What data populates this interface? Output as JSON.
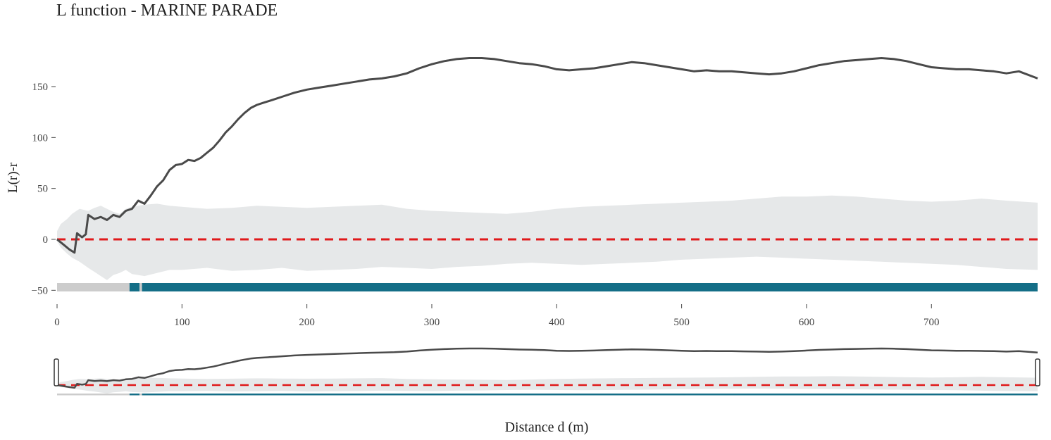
{
  "chart_data": {
    "type": "line",
    "title": "L function - MARINE PARADE",
    "xlabel": "Distance d (m)",
    "ylabel": "L(r)-r",
    "xlim": [
      0,
      785
    ],
    "ylim": [
      -55,
      190
    ],
    "x_ticks": [
      0,
      100,
      200,
      300,
      400,
      500,
      600,
      700
    ],
    "y_ticks": [
      -50,
      0,
      50,
      100,
      150
    ],
    "x_tick_labels": [
      "0",
      "100",
      "200",
      "300",
      "400",
      "500",
      "600",
      "700"
    ],
    "y_tick_labels": [
      "−50",
      "0",
      "50",
      "100",
      "150"
    ],
    "observed": {
      "color": "#4a4a4a",
      "x": [
        0,
        5,
        10,
        14,
        16,
        20,
        23,
        25,
        30,
        35,
        40,
        45,
        50,
        55,
        60,
        65,
        70,
        75,
        80,
        85,
        90,
        95,
        100,
        105,
        110,
        115,
        120,
        125,
        130,
        135,
        140,
        145,
        150,
        155,
        160,
        165,
        170,
        175,
        180,
        190,
        200,
        210,
        220,
        230,
        240,
        250,
        260,
        270,
        280,
        290,
        300,
        310,
        320,
        330,
        340,
        350,
        360,
        370,
        380,
        390,
        400,
        410,
        420,
        430,
        440,
        450,
        460,
        470,
        480,
        490,
        500,
        510,
        520,
        530,
        540,
        550,
        560,
        570,
        580,
        590,
        600,
        610,
        620,
        630,
        640,
        650,
        660,
        670,
        680,
        690,
        700,
        710,
        720,
        730,
        740,
        750,
        760,
        770,
        785
      ],
      "y": [
        0,
        -5,
        -10,
        -13,
        6,
        2,
        5,
        24,
        20,
        22,
        19,
        24,
        22,
        28,
        30,
        38,
        35,
        43,
        52,
        58,
        68,
        73,
        74,
        78,
        77,
        80,
        85,
        90,
        97,
        105,
        111,
        118,
        124,
        129,
        132,
        134,
        136,
        138,
        140,
        144,
        147,
        149,
        151,
        153,
        155,
        157,
        158,
        160,
        163,
        168,
        172,
        175,
        177,
        178,
        178,
        177,
        175,
        173,
        172,
        170,
        167,
        166,
        167,
        168,
        170,
        172,
        174,
        173,
        171,
        169,
        167,
        165,
        166,
        165,
        165,
        164,
        163,
        162,
        163,
        165,
        168,
        171,
        173,
        175,
        176,
        177,
        178,
        177,
        175,
        172,
        169,
        168,
        167,
        167,
        166,
        165,
        163,
        165,
        158
      ]
    },
    "theoretical": {
      "color": "#e0191a",
      "style": "dashed",
      "x": [
        0,
        785
      ],
      "y": [
        0,
        0
      ]
    },
    "envelope": {
      "color": "#e6e8e9",
      "x": [
        0,
        3,
        8,
        12,
        18,
        25,
        30,
        35,
        40,
        45,
        50,
        55,
        60,
        70,
        80,
        90,
        100,
        120,
        140,
        160,
        180,
        200,
        220,
        240,
        260,
        280,
        300,
        320,
        340,
        360,
        380,
        400,
        420,
        440,
        460,
        480,
        500,
        520,
        540,
        560,
        580,
        600,
        620,
        640,
        660,
        680,
        700,
        720,
        740,
        760,
        785
      ],
      "upper": [
        8,
        15,
        20,
        25,
        30,
        28,
        31,
        33,
        30,
        27,
        25,
        30,
        32,
        34,
        35,
        33,
        32,
        30,
        31,
        33,
        32,
        31,
        32,
        33,
        34,
        30,
        28,
        27,
        26,
        25,
        27,
        30,
        32,
        33,
        34,
        35,
        36,
        37,
        38,
        40,
        42,
        42,
        43,
        42,
        40,
        38,
        37,
        38,
        40,
        38,
        36
      ],
      "lower": [
        -2,
        -8,
        -14,
        -18,
        -22,
        -28,
        -32,
        -36,
        -40,
        -35,
        -33,
        -30,
        -34,
        -36,
        -33,
        -30,
        -30,
        -28,
        -31,
        -30,
        -28,
        -31,
        -30,
        -29,
        -27,
        -28,
        -29,
        -27,
        -26,
        -24,
        -23,
        -24,
        -25,
        -24,
        -23,
        -22,
        -20,
        -19,
        -18,
        -17,
        -18,
        -19,
        -20,
        -21,
        -22,
        -23,
        -24,
        -25,
        -27,
        -29,
        -30
      ]
    },
    "indicator_band": {
      "y": -47,
      "segments": [
        {
          "from": 0,
          "to": 58,
          "color": "#cccccc"
        },
        {
          "from": 58,
          "to": 66,
          "color": "#146e87"
        },
        {
          "from": 66,
          "to": 68,
          "color": "#cccccc"
        },
        {
          "from": 68,
          "to": 785,
          "color": "#146e87"
        }
      ]
    },
    "grid": false,
    "legend": "none",
    "range_selector": true
  }
}
